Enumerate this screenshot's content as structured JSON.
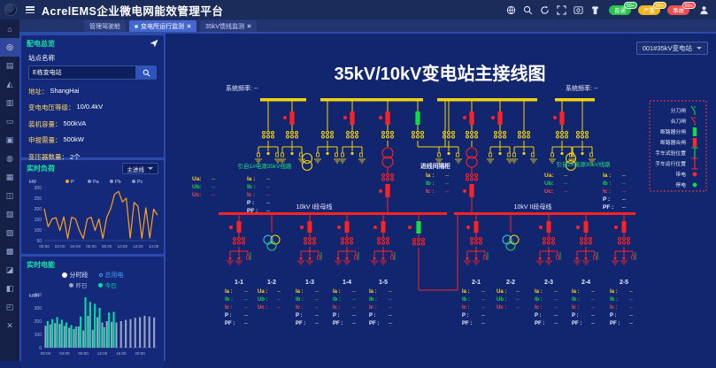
{
  "header": {
    "title": "AcrelEMS企业微电网能效管理平台",
    "badges": [
      {
        "label": "普通",
        "count": "99+",
        "color": "#27c24c"
      },
      {
        "label": "严重",
        "count": "99+",
        "color": "#f0b519"
      },
      {
        "label": "事故",
        "count": "99+",
        "color": "#ef4d4d"
      }
    ]
  },
  "tabs": [
    {
      "label": "管理驾驶舱",
      "active": false,
      "closable": false
    },
    {
      "label": "变电所运行监测",
      "active": true,
      "closable": true
    },
    {
      "label": "35kV馈线监测",
      "active": false,
      "closable": true
    }
  ],
  "sidebar": {
    "items": [
      {
        "name": "home",
        "glyph": "⌂",
        "active": false
      },
      {
        "name": "substation-monitor",
        "glyph": "◎",
        "active": true
      },
      {
        "name": "archives",
        "glyph": "▤",
        "active": false
      },
      {
        "name": "alarm",
        "glyph": "◭",
        "active": false
      },
      {
        "name": "statistics",
        "glyph": "▥",
        "active": false
      },
      {
        "name": "big-screen",
        "glyph": "▭",
        "active": false
      },
      {
        "name": "energy-card",
        "glyph": "▣",
        "active": false
      },
      {
        "name": "lighting",
        "glyph": "◍",
        "active": false
      },
      {
        "name": "power-grid",
        "glyph": "▦",
        "active": false
      },
      {
        "name": "transformer",
        "glyph": "◫",
        "active": false
      },
      {
        "name": "metering",
        "glyph": "▧",
        "active": false
      },
      {
        "name": "terminal",
        "glyph": "▨",
        "active": false
      },
      {
        "name": "battery",
        "glyph": "▩",
        "active": false
      },
      {
        "name": "operation",
        "glyph": "◪",
        "active": false
      },
      {
        "name": "documents",
        "glyph": "◧",
        "active": false
      },
      {
        "name": "reports",
        "glyph": "◰",
        "active": false
      },
      {
        "name": "tools",
        "glyph": "✕",
        "active": false
      }
    ]
  },
  "station": {
    "title": "配电总览",
    "name_label": "站点名称",
    "name_value": "E栋变电站",
    "fields": [
      {
        "label": "地址：",
        "value": "ShangHai"
      },
      {
        "label": "变电电压等级：",
        "value": "10/0.4kV"
      },
      {
        "label": "装机容量：",
        "value": "500kVA"
      },
      {
        "label": "申报需量：",
        "value": "500kW"
      },
      {
        "label": "变压器数量：",
        "value": "2个"
      }
    ]
  },
  "load": {
    "title": "实时负荷",
    "selector": "主进线"
  },
  "energy": {
    "title": "实时电能",
    "radios": [
      {
        "label": "分时段",
        "selected": false
      },
      {
        "label": "总用电",
        "selected": true
      }
    ]
  },
  "diagram": {
    "selector": "001#35kV变电站",
    "title": "35kV/10kV变电站主接线图",
    "freq_label": "系统频率: --",
    "source_left": "引自1#电源35kV线路",
    "source_right": "引自2#电源35kV线路",
    "incoming_cabinet": {
      "title": "进线间隔柜",
      "rows": [
        [
          "Ia",
          "--"
        ],
        [
          "Ib",
          "--"
        ],
        [
          "Ic",
          "--"
        ]
      ]
    },
    "main_left": {
      "u": [
        [
          "Ua",
          "--"
        ],
        [
          "Ub",
          "--"
        ],
        [
          "Uc",
          "--"
        ]
      ],
      "iq": [
        [
          "Ia",
          "--"
        ],
        [
          "Ib",
          "--"
        ],
        [
          "Ic",
          "--"
        ],
        [
          "P",
          "--"
        ],
        [
          "PF",
          "--"
        ]
      ]
    },
    "main_right": {
      "u": [
        [
          "Ua",
          "--"
        ],
        [
          "Ub",
          "--"
        ],
        [
          "Uc",
          "--"
        ]
      ],
      "iq": [
        [
          "Ia",
          "--"
        ],
        [
          "Ib",
          "--"
        ],
        [
          "Ic",
          "--"
        ],
        [
          "P",
          "--"
        ],
        [
          "PF",
          "--"
        ]
      ]
    },
    "bus1_label": "10kV I段母线",
    "bus2_label": "10kV II段母线",
    "feeders1": [
      {
        "id": "1-1",
        "type": "feeder",
        "rows": [
          [
            "Ia",
            "--"
          ],
          [
            "Ib",
            "--"
          ],
          [
            "Ic",
            "--"
          ],
          [
            "P",
            "--"
          ],
          [
            "PF",
            "--"
          ]
        ]
      },
      {
        "id": "1-2",
        "type": "pt",
        "rows": [
          [
            "Ua",
            "--"
          ],
          [
            "Ub",
            "--"
          ],
          [
            "Uc",
            "--"
          ]
        ]
      },
      {
        "id": "1-3",
        "type": "feeder",
        "rows": [
          [
            "Ia",
            "--"
          ],
          [
            "Ib",
            "--"
          ],
          [
            "Ic",
            "--"
          ],
          [
            "P",
            "--"
          ],
          [
            "PF",
            "--"
          ]
        ]
      },
      {
        "id": "1-4",
        "type": "feeder",
        "rows": [
          [
            "Ia",
            "--"
          ],
          [
            "Ib",
            "--"
          ],
          [
            "Ic",
            "--"
          ],
          [
            "P",
            "--"
          ],
          [
            "PF",
            "--"
          ]
        ]
      },
      {
        "id": "1-5",
        "type": "feeder",
        "rows": [
          [
            "Ia",
            "--"
          ],
          [
            "Ib",
            "--"
          ],
          [
            "Ic",
            "--"
          ],
          [
            "P",
            "--"
          ],
          [
            "PF",
            "--"
          ]
        ]
      }
    ],
    "feeders2": [
      {
        "id": "2-1",
        "type": "feeder",
        "rows": [
          [
            "Ia",
            "--"
          ],
          [
            "Ib",
            "--"
          ],
          [
            "Ic",
            "--"
          ],
          [
            "P",
            "--"
          ],
          [
            "PF",
            "--"
          ]
        ]
      },
      {
        "id": "2-2",
        "type": "pt",
        "rows": [
          [
            "Ua",
            "--"
          ],
          [
            "Ub",
            "--"
          ],
          [
            "Uc",
            "--"
          ]
        ]
      },
      {
        "id": "2-3",
        "type": "feeder",
        "rows": [
          [
            "Ia",
            "--"
          ],
          [
            "Ib",
            "--"
          ],
          [
            "Ic",
            "--"
          ],
          [
            "P",
            "--"
          ],
          [
            "PF",
            "--"
          ]
        ]
      },
      {
        "id": "2-4",
        "type": "feeder",
        "rows": [
          [
            "Ia",
            "--"
          ],
          [
            "Ib",
            "--"
          ],
          [
            "Ic",
            "--"
          ],
          [
            "P",
            "--"
          ],
          [
            "PF",
            "--"
          ]
        ]
      },
      {
        "id": "2-5",
        "type": "feeder",
        "rows": [
          [
            "Ia",
            "--"
          ],
          [
            "Ib",
            "--"
          ],
          [
            "Ic",
            "--"
          ],
          [
            "P",
            "--"
          ],
          [
            "PF",
            "--"
          ]
        ]
      }
    ],
    "legend": [
      {
        "label": "分刀闸",
        "symbol": "switch",
        "color": "#10dc46"
      },
      {
        "label": "合刀闸",
        "symbol": "switch",
        "color": "#ff2a2a"
      },
      {
        "label": "断路器分闸",
        "symbol": "breaker",
        "color": "#10dc46"
      },
      {
        "label": "断路器合闸",
        "symbol": "breaker",
        "color": "#ff2a2a"
      },
      {
        "label": "手车试验位置",
        "symbol": "handcart",
        "color": "#10dc46"
      },
      {
        "label": "手车运行位置",
        "symbol": "handcart",
        "color": "#ff2a2a"
      },
      {
        "label": "带电",
        "symbol": "dot",
        "color": "#ff2a2a"
      },
      {
        "label": "停电",
        "symbol": "dot",
        "color": "#10dc46"
      }
    ]
  },
  "chart_data": [
    {
      "type": "line",
      "title": "实时负荷",
      "ylabel": "kW",
      "ylim": [
        50,
        300
      ],
      "yticks": [
        50,
        100,
        150,
        200,
        250,
        300
      ],
      "x_tick_labels": [
        "00:00",
        "02:00",
        "04:00",
        "06:00",
        "08:00",
        "10:00",
        "12:00",
        "14:00"
      ],
      "x_span_hours": 14.5,
      "legend": [
        {
          "name": "P",
          "color": "#ffa21a"
        },
        {
          "name": "Pa",
          "color": "#8f9ac0"
        },
        {
          "name": "Pb",
          "color": "#8f9ac0"
        },
        {
          "name": "Pc",
          "color": "#8f9ac0"
        }
      ],
      "series": [
        {
          "name": "P",
          "color": "#ffa21a",
          "values": [
            200,
            115,
            152,
            158,
            98,
            162,
            60,
            160,
            152,
            98,
            60,
            152,
            160,
            98,
            152,
            60,
            160,
            200,
            268,
            282,
            232,
            250,
            62,
            230,
            212,
            60,
            205,
            62,
            198,
            170
          ]
        }
      ]
    },
    {
      "type": "bar",
      "title": "实时电能",
      "ylabel": "kWh",
      "ylim": [
        0,
        400
      ],
      "yticks": [
        0,
        100,
        200,
        300,
        400
      ],
      "categories": [
        "00:00",
        "01:00",
        "02:00",
        "03:00",
        "04:00",
        "05:00",
        "06:00",
        "07:00",
        "08:00",
        "09:00",
        "10:00",
        "11:00",
        "12:00",
        "13:00",
        "14:00",
        "15:00",
        "16:00",
        "17:00",
        "18:00",
        "19:00",
        "20:00",
        "21:00",
        "22:00",
        "23:00"
      ],
      "x_tick_labels": [
        "00:00",
        "04:00",
        "08:00",
        "12:00",
        "16:00",
        "20:00"
      ],
      "series": [
        {
          "name": "昨日",
          "color": "#99a4c6",
          "values": [
            165,
            175,
            185,
            180,
            165,
            150,
            140,
            160,
            130,
            240,
            135,
            230,
            190,
            200,
            195,
            190,
            200,
            210,
            215,
            225,
            230,
            240,
            235,
            228
          ]
        },
        {
          "name": "今日",
          "color": "#00e0a4",
          "values": [
            200,
            215,
            230,
            210,
            190,
            170,
            160,
            235,
            380,
            345,
            330,
            300,
            155,
            265,
            270
          ]
        }
      ]
    }
  ]
}
